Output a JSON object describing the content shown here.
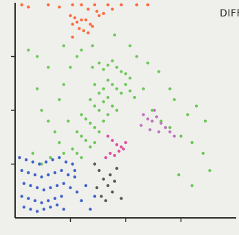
{
  "chart_data": {
    "type": "scatter",
    "title": "DIFF",
    "xlabel": "",
    "ylabel": "",
    "xlim": [
      0,
      100
    ],
    "ylim": [
      0,
      100
    ],
    "grid": false,
    "series": [
      {
        "color": "#ff6a3a",
        "points": [
          [
            26,
            99
          ],
          [
            30,
            99
          ],
          [
            36,
            99
          ],
          [
            42,
            99
          ],
          [
            48,
            99
          ],
          [
            55,
            99
          ],
          [
            60,
            99
          ],
          [
            33,
            97
          ],
          [
            37,
            96
          ],
          [
            40,
            95
          ],
          [
            26,
            90
          ],
          [
            28,
            91
          ],
          [
            30,
            92
          ],
          [
            27,
            93
          ],
          [
            32,
            92
          ],
          [
            34,
            90
          ],
          [
            29,
            88
          ],
          [
            31,
            87
          ],
          [
            26,
            84
          ],
          [
            33,
            86
          ],
          [
            35,
            89
          ],
          [
            25,
            94
          ],
          [
            38,
            94
          ],
          [
            44,
            97
          ],
          [
            3,
            99
          ],
          [
            6,
            98
          ],
          [
            15,
            99
          ],
          [
            20,
            98
          ]
        ]
      },
      {
        "color": "#6fc95a",
        "points": [
          [
            35,
            70
          ],
          [
            38,
            72
          ],
          [
            40,
            69
          ],
          [
            42,
            71
          ],
          [
            44,
            73
          ],
          [
            46,
            70
          ],
          [
            48,
            68
          ],
          [
            50,
            67
          ],
          [
            52,
            65
          ],
          [
            36,
            62
          ],
          [
            38,
            58
          ],
          [
            40,
            60
          ],
          [
            42,
            64
          ],
          [
            44,
            62
          ],
          [
            46,
            60
          ],
          [
            48,
            58
          ],
          [
            50,
            62
          ],
          [
            52,
            59
          ],
          [
            54,
            56
          ],
          [
            34,
            55
          ],
          [
            36,
            52
          ],
          [
            38,
            50
          ],
          [
            40,
            54
          ],
          [
            42,
            56
          ],
          [
            44,
            52
          ],
          [
            46,
            50
          ],
          [
            30,
            48
          ],
          [
            32,
            46
          ],
          [
            34,
            44
          ],
          [
            36,
            42
          ],
          [
            38,
            40
          ],
          [
            40,
            45
          ],
          [
            42,
            48
          ],
          [
            28,
            40
          ],
          [
            30,
            38
          ],
          [
            32,
            36
          ],
          [
            34,
            33
          ],
          [
            36,
            35
          ],
          [
            26,
            32
          ],
          [
            28,
            30
          ],
          [
            30,
            28
          ],
          [
            10,
            60
          ],
          [
            12,
            50
          ],
          [
            15,
            45
          ],
          [
            18,
            40
          ],
          [
            20,
            35
          ],
          [
            22,
            30
          ],
          [
            20,
            55
          ],
          [
            22,
            62
          ],
          [
            25,
            70
          ],
          [
            28,
            75
          ],
          [
            30,
            78
          ],
          [
            55,
            75
          ],
          [
            60,
            72
          ],
          [
            65,
            68
          ],
          [
            70,
            60
          ],
          [
            72,
            55
          ],
          [
            58,
            60
          ],
          [
            62,
            50
          ],
          [
            66,
            45
          ],
          [
            70,
            42
          ],
          [
            75,
            38
          ],
          [
            80,
            35
          ],
          [
            85,
            30
          ],
          [
            78,
            48
          ],
          [
            82,
            52
          ],
          [
            86,
            45
          ],
          [
            10,
            75
          ],
          [
            15,
            70
          ],
          [
            22,
            80
          ],
          [
            35,
            80
          ],
          [
            45,
            85
          ],
          [
            52,
            80
          ],
          [
            8,
            30
          ],
          [
            12,
            25
          ],
          [
            16,
            28
          ],
          [
            74,
            20
          ],
          [
            80,
            15
          ],
          [
            88,
            22
          ],
          [
            6,
            78
          ],
          [
            24,
            45
          ]
        ]
      },
      {
        "color": "#3f63c8",
        "points": [
          [
            2,
            28
          ],
          [
            5,
            27
          ],
          [
            8,
            26
          ],
          [
            11,
            25
          ],
          [
            14,
            26
          ],
          [
            17,
            27
          ],
          [
            20,
            28
          ],
          [
            23,
            26
          ],
          [
            26,
            25
          ],
          [
            3,
            22
          ],
          [
            6,
            21
          ],
          [
            9,
            20
          ],
          [
            12,
            19
          ],
          [
            15,
            20
          ],
          [
            18,
            21
          ],
          [
            21,
            22
          ],
          [
            24,
            20
          ],
          [
            27,
            19
          ],
          [
            4,
            16
          ],
          [
            7,
            15
          ],
          [
            10,
            14
          ],
          [
            13,
            13
          ],
          [
            16,
            14
          ],
          [
            19,
            15
          ],
          [
            22,
            16
          ],
          [
            25,
            14
          ],
          [
            3,
            10
          ],
          [
            6,
            9
          ],
          [
            9,
            8
          ],
          [
            12,
            7
          ],
          [
            15,
            8
          ],
          [
            18,
            9
          ],
          [
            21,
            10
          ],
          [
            4,
            5
          ],
          [
            7,
            4
          ],
          [
            10,
            3
          ],
          [
            13,
            4
          ],
          [
            16,
            5
          ],
          [
            19,
            6
          ],
          [
            22,
            4
          ],
          [
            28,
            12
          ],
          [
            30,
            8
          ],
          [
            32,
            15
          ],
          [
            34,
            4
          ],
          [
            36,
            10
          ],
          [
            27,
            22
          ]
        ]
      },
      {
        "color": "#e0569f",
        "points": [
          [
            42,
            38
          ],
          [
            44,
            36
          ],
          [
            46,
            34
          ],
          [
            48,
            33
          ],
          [
            50,
            35
          ],
          [
            47,
            31
          ],
          [
            43,
            30
          ],
          [
            41,
            28
          ],
          [
            45,
            29
          ],
          [
            49,
            32
          ]
        ]
      },
      {
        "color": "#c07ac0",
        "points": [
          [
            58,
            48
          ],
          [
            60,
            46
          ],
          [
            62,
            45
          ],
          [
            64,
            47
          ],
          [
            66,
            44
          ],
          [
            68,
            42
          ],
          [
            61,
            41
          ],
          [
            65,
            40
          ],
          [
            70,
            40
          ],
          [
            72,
            38
          ],
          [
            57,
            43
          ],
          [
            63,
            50
          ]
        ]
      },
      {
        "color": "#5a5a5a",
        "points": [
          [
            36,
            25
          ],
          [
            38,
            22
          ],
          [
            40,
            18
          ],
          [
            42,
            15
          ],
          [
            44,
            12
          ],
          [
            39,
            10
          ],
          [
            41,
            8
          ],
          [
            43,
            20
          ],
          [
            45,
            17
          ],
          [
            37,
            14
          ],
          [
            46,
            23
          ],
          [
            48,
            9
          ]
        ]
      }
    ]
  }
}
